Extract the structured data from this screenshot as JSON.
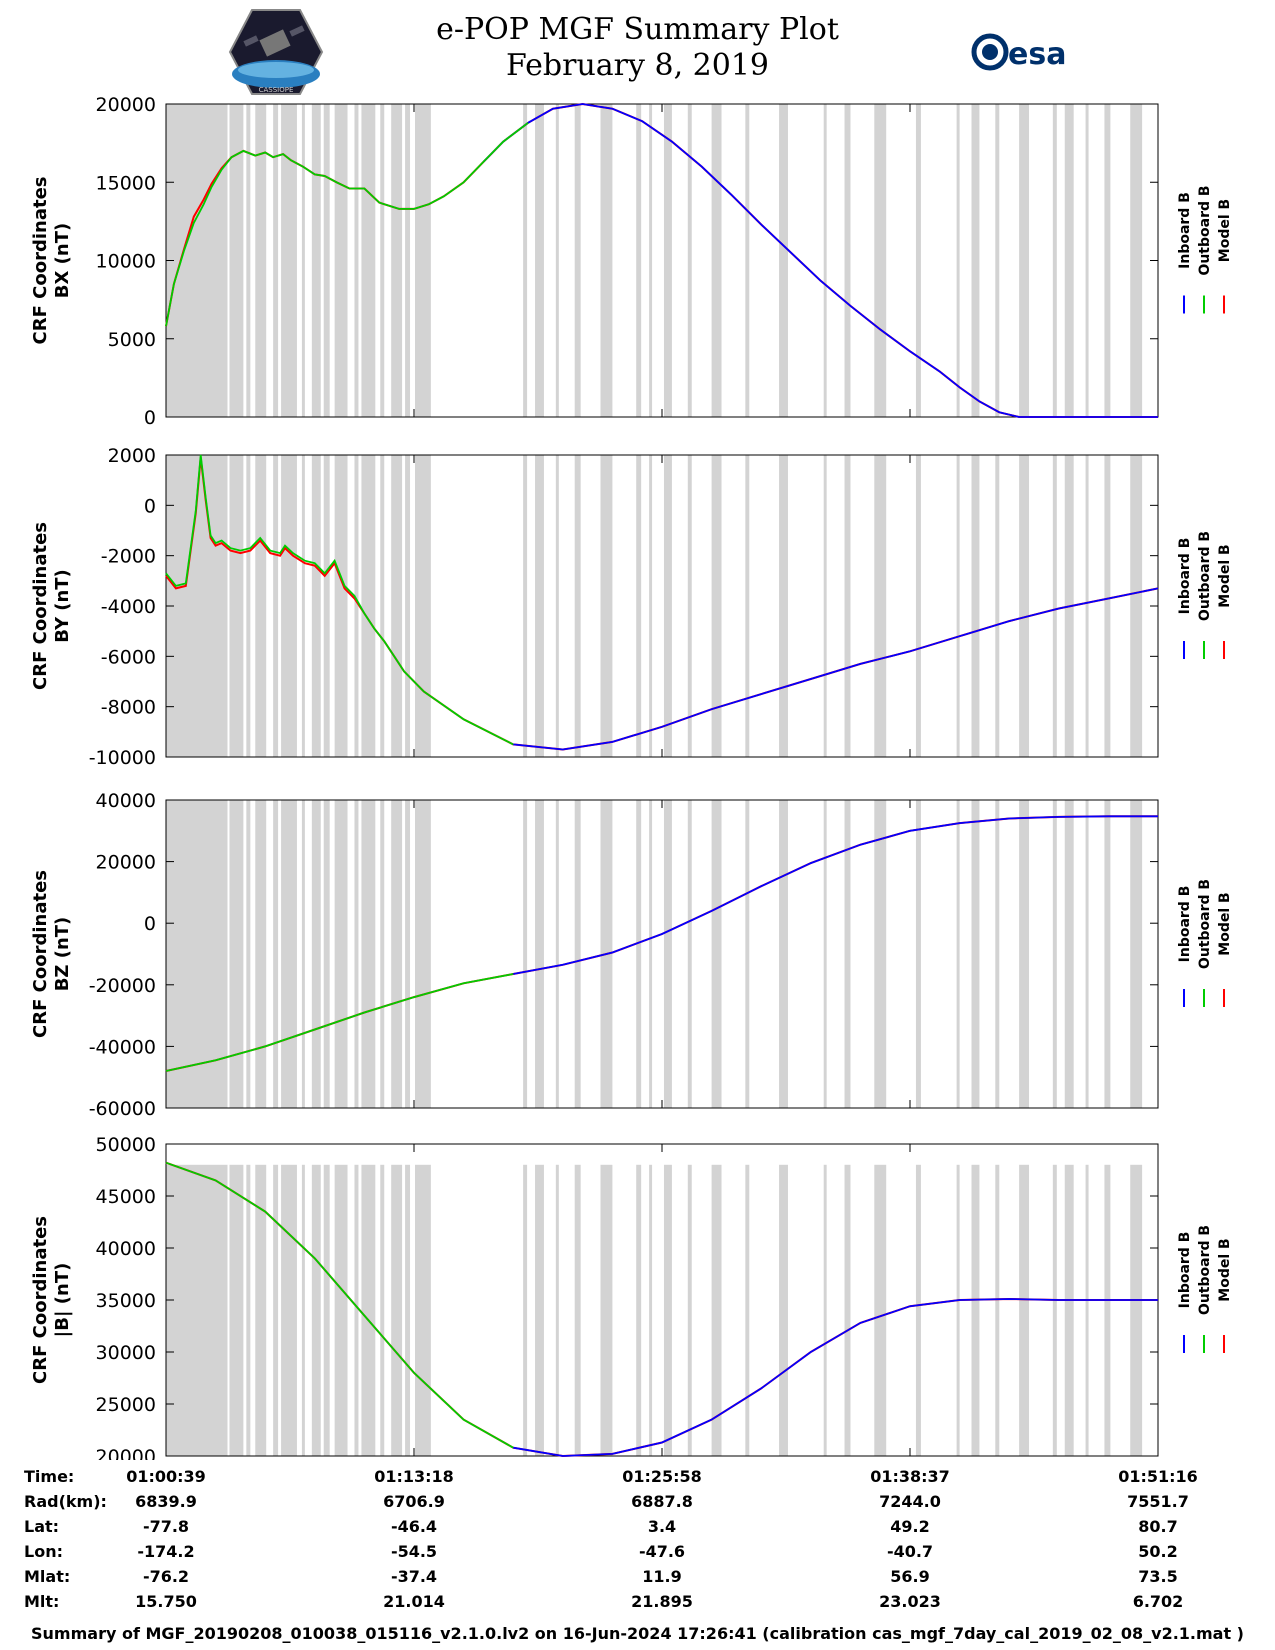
{
  "header": {
    "title_line1": "e-POP MGF Summary Plot",
    "title_line2": "February 8, 2019",
    "left_logo": "cassiope-satellite-logo",
    "left_logo_text": "CASSIOPE",
    "right_logo_text": "esa"
  },
  "legend": {
    "entries": [
      "Inboard B",
      "Outboard B",
      "Model B"
    ],
    "colors": [
      "#0000ff",
      "#00cc00",
      "#ff0000"
    ]
  },
  "chart_data": [
    {
      "type": "line",
      "panel": "BX",
      "ylabel_line1": "CRF Coordinates",
      "ylabel_line2": "BX (nT)",
      "ylim": [
        0,
        20000
      ],
      "yticks": [
        0,
        5000,
        10000,
        15000,
        20000
      ],
      "xlim": [
        0,
        1
      ],
      "x_ticks": [
        0,
        0.25,
        0.5,
        0.75,
        1.0
      ],
      "green_end": 0.365,
      "x": [
        0,
        0.008,
        0.018,
        0.028,
        0.038,
        0.046,
        0.056,
        0.066,
        0.078,
        0.09,
        0.1,
        0.108,
        0.118,
        0.126,
        0.138,
        0.15,
        0.16,
        0.172,
        0.185,
        0.2,
        0.215,
        0.235,
        0.25,
        0.265,
        0.28,
        0.3,
        0.32,
        0.34,
        0.365,
        0.39,
        0.42,
        0.45,
        0.48,
        0.51,
        0.54,
        0.57,
        0.6,
        0.63,
        0.66,
        0.69,
        0.72,
        0.75,
        0.78,
        0.8,
        0.82,
        0.84,
        0.86,
        0.88,
        0.9,
        0.92,
        0.94,
        0.96,
        0.97,
        0.98,
        1.0
      ],
      "series": [
        {
          "name": "Inboard B",
          "color": "#0000ff",
          "values": [
            5800,
            8500,
            10600,
            12600,
            13700,
            14800,
            15800,
            16600,
            17000,
            16700,
            16900,
            16600,
            16800,
            16400,
            16000,
            15500,
            15400,
            15000,
            14600,
            14600,
            13700,
            13300,
            13300,
            13600,
            14100,
            15000,
            16300,
            17600,
            18800,
            19700,
            20000,
            19700,
            18900,
            17600,
            16000,
            14200,
            12300,
            10500,
            8700,
            7100,
            5600,
            4200,
            2900,
            1900,
            1000,
            300,
            0,
            0,
            0,
            0,
            0,
            0,
            0,
            0,
            0
          ]
        },
        {
          "name": "Outboard B",
          "color": "#00cc00",
          "values": [
            5800,
            8500,
            10600,
            12400,
            13600,
            14700,
            15800,
            16600,
            17000,
            16700,
            16900,
            16600,
            16800,
            16400,
            16000,
            15500,
            15400,
            15000,
            14600,
            14600,
            13700,
            13300,
            13300,
            13600,
            14100,
            15000,
            16300,
            17600,
            18800,
            19700,
            20000,
            19700,
            18900,
            17600,
            16000,
            14200,
            12300,
            10500,
            8700,
            7100,
            5600,
            4200,
            2900,
            1900,
            1000,
            300,
            0,
            0,
            0,
            0,
            0,
            0,
            0,
            0,
            0
          ]
        },
        {
          "name": "Model B",
          "color": "#ff0000",
          "values": [
            5800,
            8500,
            10700,
            12800,
            13900,
            14900,
            15900,
            16600,
            17000,
            16700,
            16900,
            16600,
            16800,
            16400,
            16000,
            15500,
            15400,
            15000,
            14600,
            14600,
            13700,
            13300,
            13300,
            13600,
            14100,
            15000,
            16300,
            17600,
            18800,
            19700,
            20000,
            19700,
            18900,
            17600,
            16000,
            14200,
            12300,
            10500,
            8700,
            7100,
            5600,
            4200,
            2900,
            1900,
            1000,
            300,
            0,
            0,
            0,
            0,
            0,
            0,
            0,
            0,
            0
          ]
        }
      ]
    },
    {
      "type": "line",
      "panel": "BY",
      "ylabel_line1": "CRF Coordinates",
      "ylabel_line2": "BY (nT)",
      "ylim": [
        -10000,
        2000
      ],
      "yticks": [
        -10000,
        -8000,
        -6000,
        -4000,
        -2000,
        0,
        2000
      ],
      "xlim": [
        0,
        1
      ],
      "x_ticks": [
        0,
        0.25,
        0.5,
        0.75,
        1.0
      ],
      "green_end": 0.365,
      "x": [
        0,
        0.01,
        0.02,
        0.03,
        0.035,
        0.04,
        0.045,
        0.05,
        0.056,
        0.065,
        0.075,
        0.085,
        0.095,
        0.105,
        0.115,
        0.12,
        0.128,
        0.14,
        0.15,
        0.16,
        0.17,
        0.18,
        0.19,
        0.2,
        0.21,
        0.22,
        0.23,
        0.24,
        0.26,
        0.3,
        0.35,
        0.4,
        0.45,
        0.5,
        0.55,
        0.6,
        0.65,
        0.7,
        0.75,
        0.8,
        0.85,
        0.9,
        0.95,
        1.0
      ],
      "series": [
        {
          "name": "Inboard B",
          "color": "#0000ff",
          "values": [
            -2700,
            -3200,
            -3100,
            -200,
            2000,
            300,
            -1200,
            -1500,
            -1400,
            -1700,
            -1800,
            -1700,
            -1300,
            -1800,
            -1900,
            -1600,
            -1900,
            -2200,
            -2300,
            -2700,
            -2200,
            -3200,
            -3600,
            -4300,
            -4900,
            -5400,
            -6000,
            -6600,
            -7400,
            -8500,
            -9500,
            -9700,
            -9400,
            -8800,
            -8100,
            -7500,
            -6900,
            -6300,
            -5800,
            -5200,
            -4600,
            -4100,
            -3700,
            -3300
          ]
        },
        {
          "name": "Outboard B",
          "color": "#00cc00",
          "values": [
            -2700,
            -3200,
            -3100,
            -200,
            2000,
            300,
            -1200,
            -1500,
            -1400,
            -1700,
            -1800,
            -1700,
            -1300,
            -1800,
            -1900,
            -1600,
            -1900,
            -2200,
            -2300,
            -2700,
            -2200,
            -3200,
            -3600,
            -4300,
            -4900,
            -5400,
            -6000,
            -6600,
            -7400,
            -8500,
            -9500,
            -9700,
            -9400,
            -8800,
            -8100,
            -7500,
            -6900,
            -6300,
            -5800,
            -5200,
            -4600,
            -4100,
            -3700,
            -3300
          ]
        },
        {
          "name": "Model B",
          "color": "#ff0000",
          "values": [
            -2800,
            -3300,
            -3200,
            -300,
            1900,
            200,
            -1300,
            -1600,
            -1500,
            -1800,
            -1900,
            -1800,
            -1400,
            -1900,
            -2000,
            -1700,
            -2000,
            -2300,
            -2400,
            -2800,
            -2300,
            -3300,
            -3700,
            -4300,
            -4900,
            -5400,
            -6000,
            -6600,
            -7400,
            -8500,
            -9500,
            -9700,
            -9400,
            -8800,
            -8100,
            -7500,
            -6900,
            -6300,
            -5800,
            -5200,
            -4600,
            -4100,
            -3700,
            -3300
          ]
        }
      ]
    },
    {
      "type": "line",
      "panel": "BZ",
      "ylabel_line1": "CRF Coordinates",
      "ylabel_line2": "BZ (nT)",
      "ylim": [
        -60000,
        40000
      ],
      "yticks": [
        -60000,
        -40000,
        -20000,
        0,
        20000,
        40000
      ],
      "xlim": [
        0,
        1
      ],
      "x_ticks": [
        0,
        0.25,
        0.5,
        0.75,
        1.0
      ],
      "green_end": 0.365,
      "x": [
        0,
        0.05,
        0.1,
        0.15,
        0.2,
        0.25,
        0.3,
        0.35,
        0.4,
        0.45,
        0.5,
        0.55,
        0.6,
        0.65,
        0.7,
        0.75,
        0.8,
        0.85,
        0.9,
        0.95,
        1.0
      ],
      "series": [
        {
          "name": "Inboard B",
          "color": "#0000ff",
          "values": [
            -48000,
            -44500,
            -40000,
            -34500,
            -29000,
            -24000,
            -19500,
            -16500,
            -13500,
            -9500,
            -3500,
            4000,
            12000,
            19500,
            25500,
            30000,
            32500,
            34000,
            34500,
            34700,
            34700
          ]
        },
        {
          "name": "Outboard B",
          "color": "#00cc00",
          "values": [
            -48000,
            -44500,
            -40000,
            -34500,
            -29000,
            -24000,
            -19500,
            -16500,
            -13500,
            -9500,
            -3500,
            4000,
            12000,
            19500,
            25500,
            30000,
            32500,
            34000,
            34500,
            34700,
            34700
          ]
        },
        {
          "name": "Model B",
          "color": "#ff0000",
          "values": [
            -48000,
            -44500,
            -40000,
            -34500,
            -29000,
            -24000,
            -19500,
            -16500,
            -13500,
            -9500,
            -3500,
            4000,
            12000,
            19500,
            25500,
            30000,
            32500,
            34000,
            34500,
            34700,
            34700
          ]
        }
      ]
    },
    {
      "type": "line",
      "panel": "|B|",
      "ylabel_line1": "CRF Coordinates",
      "ylabel_line2": "|B| (nT)",
      "ylim": [
        20000,
        50000
      ],
      "yticks": [
        20000,
        25000,
        30000,
        35000,
        40000,
        45000,
        50000
      ],
      "xlim": [
        0,
        1
      ],
      "x_ticks": [
        0,
        0.25,
        0.5,
        0.75,
        1.0
      ],
      "green_end": 0.365,
      "x": [
        0,
        0.05,
        0.1,
        0.15,
        0.2,
        0.25,
        0.3,
        0.35,
        0.4,
        0.45,
        0.5,
        0.55,
        0.6,
        0.65,
        0.7,
        0.75,
        0.8,
        0.85,
        0.9,
        0.95,
        1.0
      ],
      "series": [
        {
          "name": "Inboard B",
          "color": "#0000ff",
          "values": [
            48200,
            46500,
            43500,
            39000,
            33500,
            28000,
            23500,
            20800,
            20000,
            20200,
            21300,
            23500,
            26500,
            30000,
            32800,
            34400,
            35000,
            35100,
            35000,
            35000,
            35000
          ]
        },
        {
          "name": "Outboard B",
          "color": "#00cc00",
          "values": [
            48200,
            46500,
            43500,
            39000,
            33500,
            28000,
            23500,
            20800,
            20000,
            20200,
            21300,
            23500,
            26500,
            30000,
            32800,
            34400,
            35000,
            35100,
            35000,
            35000,
            35000
          ]
        },
        {
          "name": "Model B",
          "color": "#ff0000",
          "values": [
            48200,
            46500,
            43500,
            39000,
            33500,
            28000,
            23500,
            20800,
            20000,
            20200,
            21300,
            23500,
            26500,
            30000,
            32800,
            34400,
            35000,
            35100,
            35000,
            35000,
            35000
          ]
        }
      ]
    }
  ],
  "ephemeris": {
    "labels": [
      "Time:",
      "Rad(km):",
      "Lat:",
      "Lon:",
      "Mlat:",
      "Mlt:"
    ],
    "columns": [
      [
        "01:00:39",
        "6839.9",
        "-77.8",
        "-174.2",
        "-76.2",
        "15.750"
      ],
      [
        "01:13:18",
        "6706.9",
        "-46.4",
        "-54.5",
        "-37.4",
        "21.014"
      ],
      [
        "01:25:58",
        "6887.8",
        "3.4",
        "-47.6",
        "11.9",
        "21.895"
      ],
      [
        "01:38:37",
        "7244.0",
        "49.2",
        "-40.7",
        "56.9",
        "23.023"
      ],
      [
        "01:51:16",
        "7551.7",
        "80.7",
        "50.2",
        "73.5",
        "6.702"
      ]
    ]
  },
  "footer": {
    "text": "Summary of MGF_20190208_010038_015116_v2.1.0.lv2 on 16-Jun-2024 17:26:41 (calibration cas_mgf_7day_cal_2019_02_08_v2.1.mat )"
  }
}
